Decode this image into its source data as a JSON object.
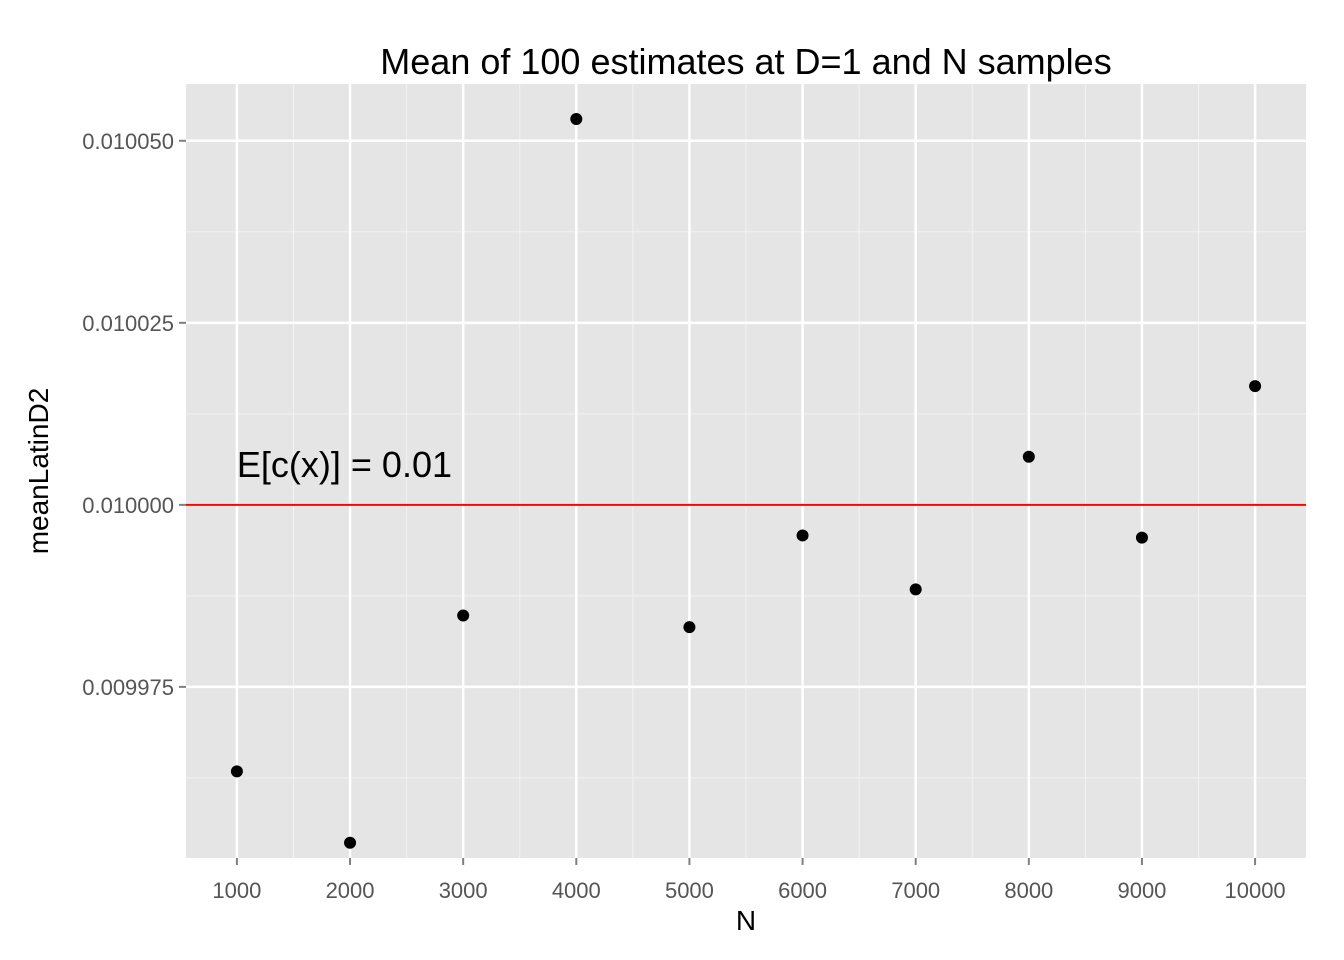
{
  "chart_data": {
    "type": "scatter",
    "title": "Mean of 100 estimates at D=1 and N samples",
    "xlabel": "N",
    "ylabel": "meanLatinD2",
    "x": [
      1000,
      2000,
      3000,
      4000,
      5000,
      6000,
      7000,
      8000,
      9000,
      10000
    ],
    "y": [
      0.0099634,
      0.0099536,
      0.0099848,
      0.010053,
      0.0099832,
      0.0099958,
      0.0099884,
      0.0100066,
      0.0099955,
      0.0100163
    ],
    "xlim": [
      550,
      10450
    ],
    "ylim": [
      0.0099515,
      0.0100578
    ],
    "x_ticks": [
      "1000",
      "2000",
      "3000",
      "4000",
      "5000",
      "6000",
      "7000",
      "8000",
      "9000",
      "10000"
    ],
    "y_ticks": [
      "0.009975",
      "0.010000",
      "0.010025",
      "0.010050"
    ],
    "y_tick_values": [
      0.009975,
      0.01,
      0.010025,
      0.01005
    ],
    "reference_line": {
      "y": 0.01,
      "color": "#ff0000"
    },
    "annotation": {
      "text": "E[c(x)] = 0.01",
      "x": 1000,
      "y": 0.0100055
    },
    "grid": true,
    "legend": "none",
    "colors": {
      "panel_background": "#e5e5e5",
      "grid_major": "#ffffff",
      "grid_minor": "#f2f2f2",
      "point": "#000000",
      "reference_line": "#ff0000",
      "tick_text": "#555555",
      "title_text": "#000000"
    }
  }
}
